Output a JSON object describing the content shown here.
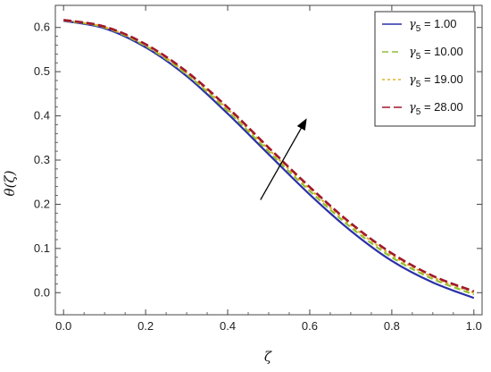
{
  "chart_data": {
    "type": "line",
    "xlabel": "ζ",
    "ylabel": "θ(ζ)",
    "xlim": [
      -0.02,
      1.02
    ],
    "ylim": [
      -0.05,
      0.65
    ],
    "x_ticks": [
      "0.0",
      "0.2",
      "0.4",
      "0.6",
      "0.8",
      "1.0"
    ],
    "x_tick_values": [
      0.0,
      0.2,
      0.4,
      0.6,
      0.8,
      1.0
    ],
    "y_ticks": [
      "0.0",
      "0.1",
      "0.2",
      "0.3",
      "0.4",
      "0.5",
      "0.6"
    ],
    "y_tick_values": [
      0.0,
      0.1,
      0.2,
      0.3,
      0.4,
      0.5,
      0.6
    ],
    "grid": false,
    "legend_position": "top-right",
    "x": [
      0.0,
      0.1,
      0.2,
      0.3,
      0.4,
      0.5,
      0.6,
      0.7,
      0.8,
      0.9,
      1.0
    ],
    "series": [
      {
        "name": "γ5 = 1.00",
        "legend_symbol": "γ",
        "legend_sub": "5",
        "legend_value": " = 1.00",
        "color": "#2b2fa8",
        "dash": "none",
        "width": 2.2,
        "values": [
          0.615,
          0.598,
          0.555,
          0.49,
          0.405,
          0.313,
          0.222,
          0.14,
          0.072,
          0.023,
          -0.012
        ]
      },
      {
        "name": "γ5 = 10.00",
        "legend_symbol": "γ",
        "legend_sub": "5",
        "legend_value": " = 10.00",
        "color": "#8fbf3a",
        "dash": "7,4",
        "width": 2.2,
        "values": [
          0.616,
          0.6,
          0.558,
          0.494,
          0.411,
          0.319,
          0.23,
          0.148,
          0.08,
          0.031,
          -0.004
        ]
      },
      {
        "name": "γ5 = 19.00",
        "legend_symbol": "γ",
        "legend_sub": "5",
        "legend_value": " = 19.00",
        "color": "#e0b02a",
        "dash": "3,3",
        "width": 2.2,
        "values": [
          0.616,
          0.601,
          0.56,
          0.497,
          0.415,
          0.324,
          0.235,
          0.153,
          0.085,
          0.035,
          0.0
        ]
      },
      {
        "name": "γ5 = 28.00",
        "legend_symbol": "γ",
        "legend_sub": "5",
        "legend_value": " = 28.00",
        "color": "#a0182c",
        "dash": "9,4",
        "width": 2.6,
        "values": [
          0.617,
          0.602,
          0.562,
          0.5,
          0.419,
          0.328,
          0.239,
          0.157,
          0.089,
          0.038,
          0.003
        ]
      }
    ],
    "annotations": [
      {
        "type": "arrow",
        "from": [
          0.48,
          0.21
        ],
        "to": [
          0.59,
          0.39
        ],
        "color": "#000000"
      }
    ]
  }
}
